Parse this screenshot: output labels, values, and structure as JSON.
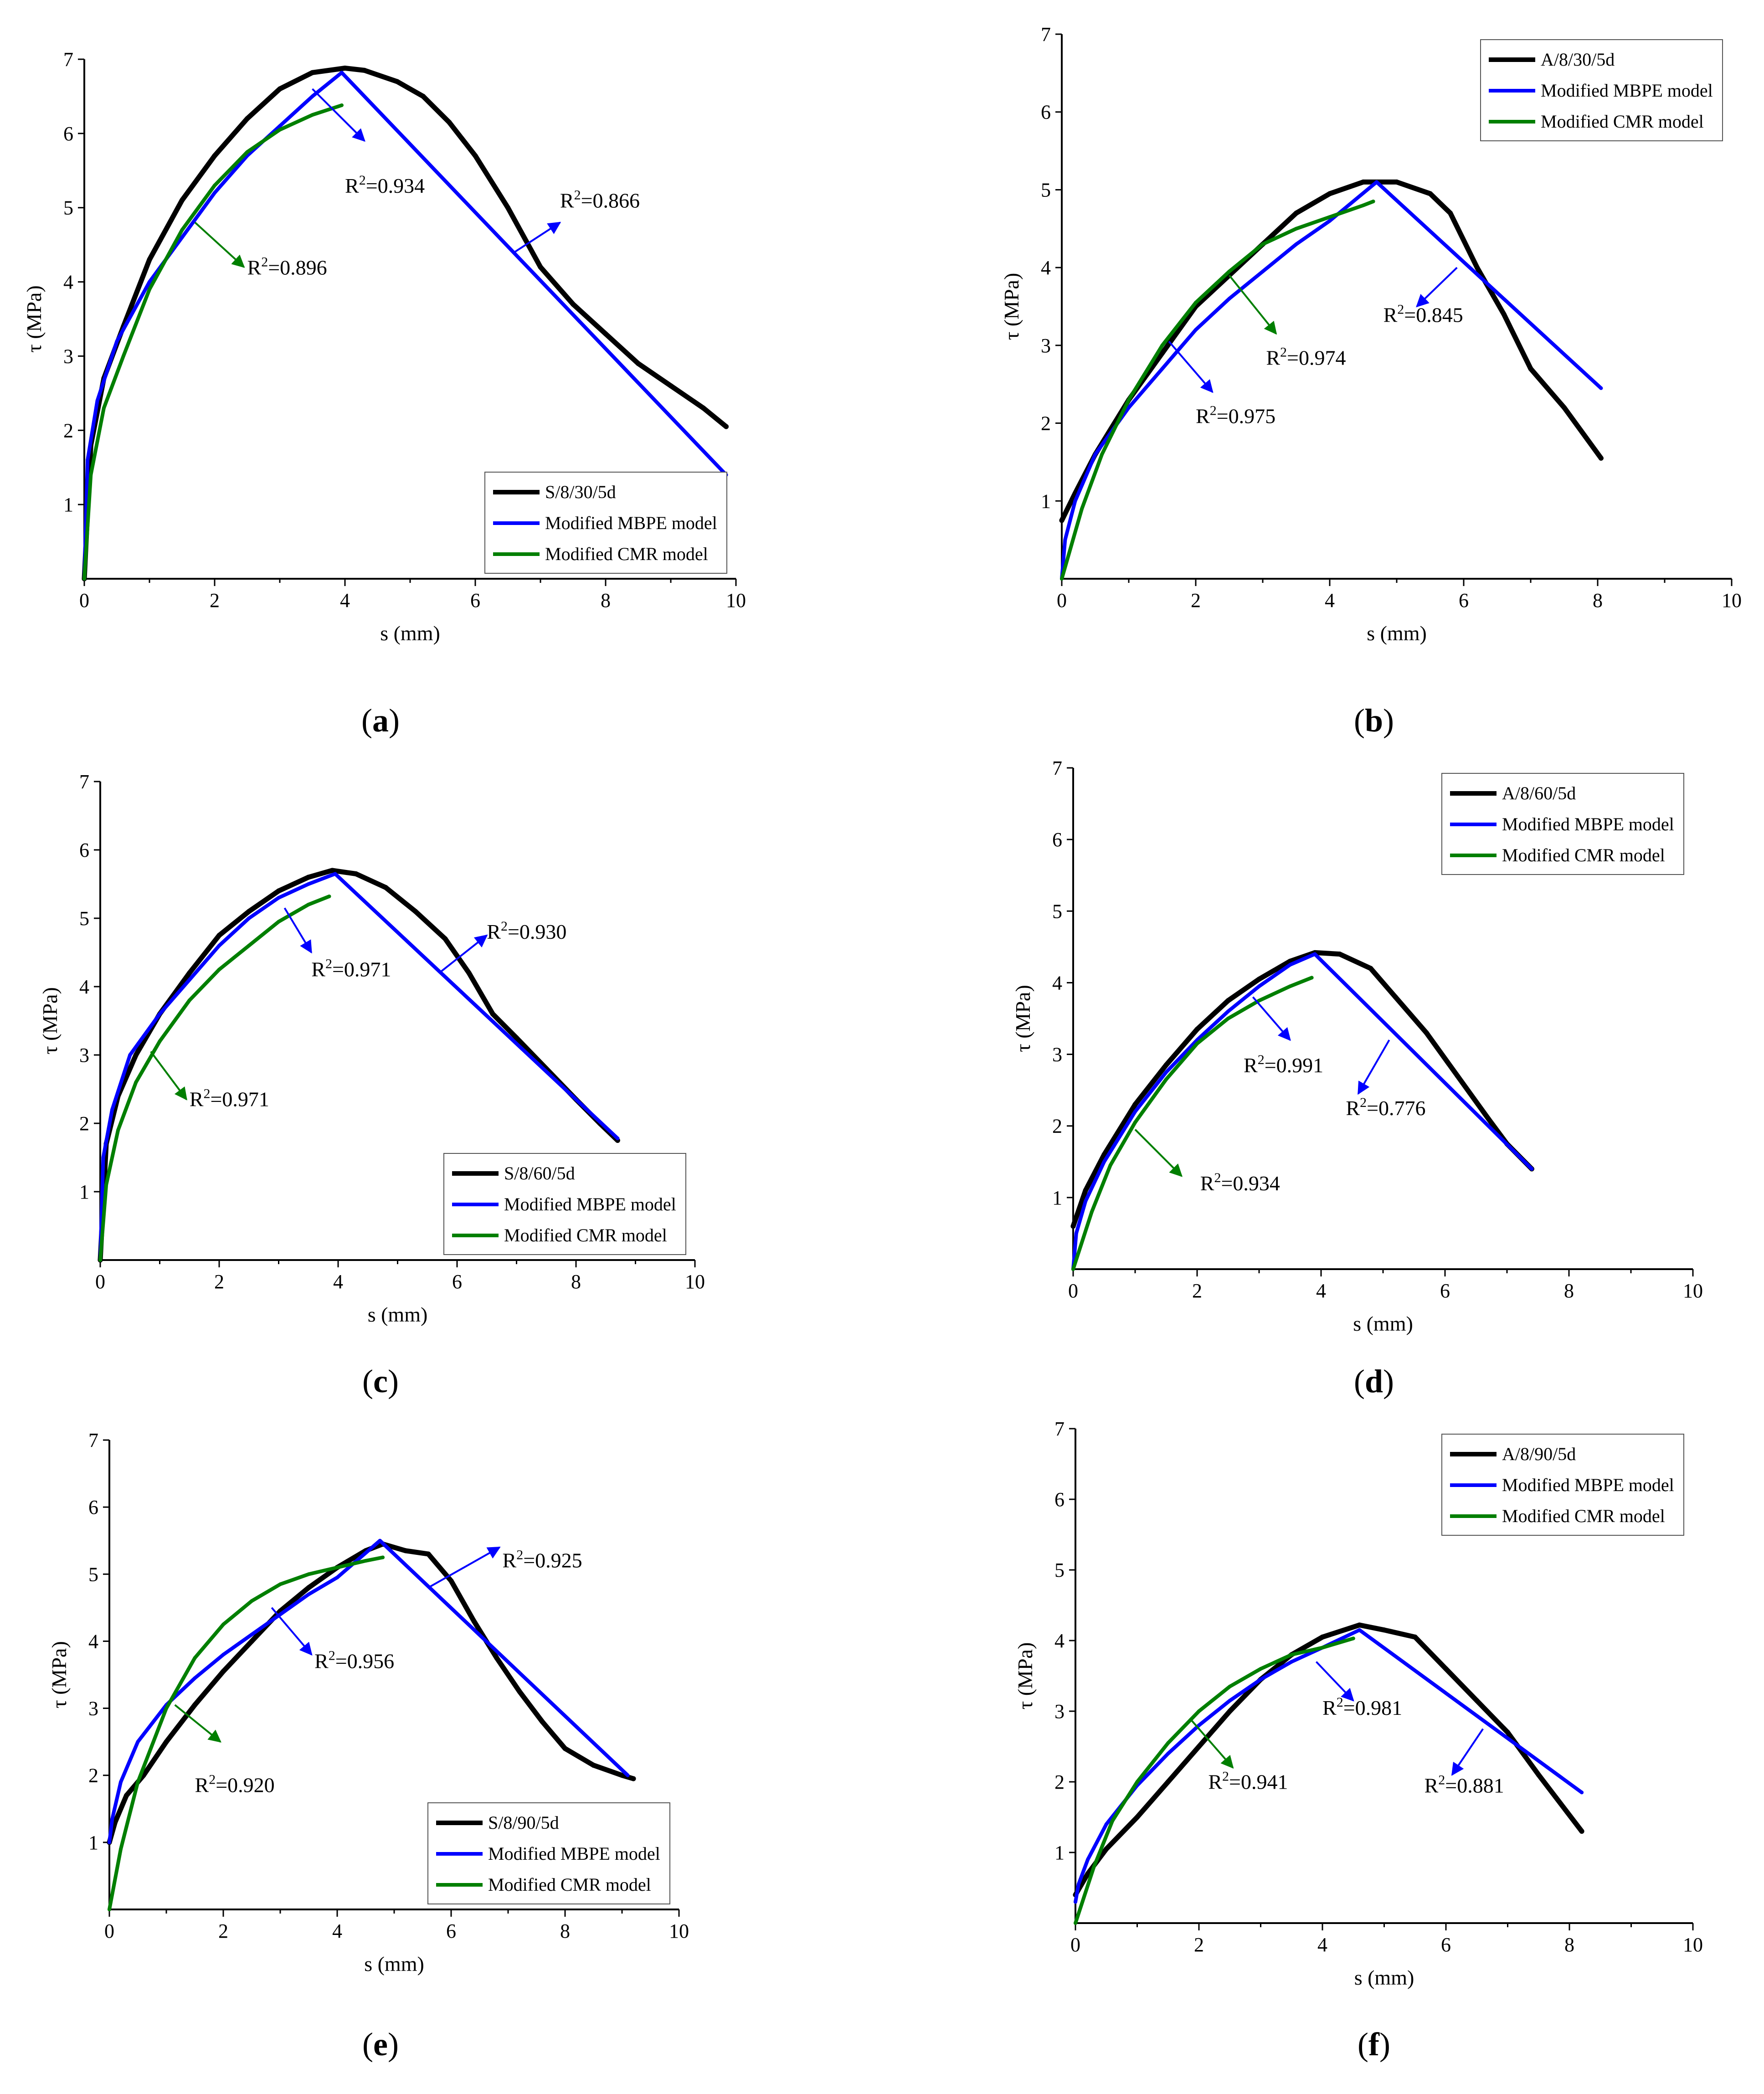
{
  "colors": {
    "experimental": "#000000",
    "mbpe": "#0000ff",
    "cmr": "#007f00"
  },
  "chart_data": [
    {
      "type": "line",
      "caption": "a",
      "xlabel": "s (mm)",
      "ylabel": "τ (MPa)",
      "xlim": [
        0,
        10
      ],
      "ylim": [
        0,
        7
      ],
      "xticks": [
        0,
        2,
        4,
        6,
        8,
        10
      ],
      "yticks": [
        1,
        2,
        3,
        4,
        5,
        6,
        7
      ],
      "legend_position": "bottom-right",
      "series": [
        {
          "name": "S/8/30/5d",
          "role": "experimental",
          "x": [
            0,
            0.1,
            0.3,
            0.6,
            1.0,
            1.5,
            2.0,
            2.5,
            3.0,
            3.5,
            4.0,
            4.3,
            4.8,
            5.2,
            5.6,
            6.0,
            6.5,
            7.0,
            7.5,
            8.0,
            8.5,
            9.0,
            9.5,
            9.85
          ],
          "y": [
            0,
            1.8,
            2.7,
            3.4,
            4.3,
            5.1,
            5.7,
            6.2,
            6.6,
            6.82,
            6.88,
            6.85,
            6.7,
            6.5,
            6.15,
            5.7,
            5.0,
            4.2,
            3.7,
            3.3,
            2.9,
            2.6,
            2.3,
            2.05
          ]
        },
        {
          "name": "Modified MBPE model",
          "role": "mbpe",
          "x": [
            0,
            0.05,
            0.2,
            0.5,
            1.0,
            1.5,
            2.0,
            2.5,
            3.0,
            3.5,
            3.95,
            9.85
          ],
          "y": [
            0,
            1.6,
            2.4,
            3.2,
            4.0,
            4.6,
            5.2,
            5.7,
            6.1,
            6.5,
            6.82,
            1.4
          ]
        },
        {
          "name": "Modified CMR model",
          "role": "cmr",
          "x": [
            0,
            0.1,
            0.3,
            0.6,
            1.0,
            1.5,
            2.0,
            2.5,
            3.0,
            3.5,
            3.95
          ],
          "y": [
            0,
            1.4,
            2.3,
            3.0,
            3.9,
            4.7,
            5.3,
            5.75,
            6.05,
            6.25,
            6.38
          ]
        }
      ],
      "annotations": [
        {
          "text": "R2=0.934",
          "value": "0.934",
          "tx": 4.0,
          "ty": 5.2,
          "ax1": 3.5,
          "ay1": 6.6,
          "ax2": 4.3,
          "ay2": 5.9,
          "color": "mbpe"
        },
        {
          "text": "R2=0.866",
          "value": "0.866",
          "tx": 7.3,
          "ty": 5.0,
          "ax1": 6.6,
          "ay1": 4.4,
          "ax2": 7.3,
          "ay2": 4.8,
          "color": "mbpe"
        },
        {
          "text": "R2=0.896",
          "value": "0.896",
          "tx": 2.5,
          "ty": 4.1,
          "ax1": 1.7,
          "ay1": 4.8,
          "ax2": 2.45,
          "ay2": 4.2,
          "color": "cmr"
        }
      ]
    },
    {
      "type": "line",
      "caption": "b",
      "xlabel": "s (mm)",
      "ylabel": "τ (MPa)",
      "xlim": [
        0,
        10
      ],
      "ylim": [
        0,
        7
      ],
      "xticks": [
        0,
        2,
        4,
        6,
        8,
        10
      ],
      "yticks": [
        1,
        2,
        3,
        4,
        5,
        6,
        7
      ],
      "legend_position": "top-right",
      "series": [
        {
          "name": "A/8/30/5d",
          "role": "experimental",
          "x": [
            0,
            0.2,
            0.5,
            1.0,
            1.5,
            2.0,
            2.5,
            3.0,
            3.5,
            4.0,
            4.5,
            5.0,
            5.5,
            5.8,
            6.2,
            6.6,
            7.0,
            7.5,
            8.05
          ],
          "y": [
            0.75,
            1.1,
            1.6,
            2.3,
            2.9,
            3.5,
            3.9,
            4.3,
            4.7,
            4.95,
            5.1,
            5.1,
            4.95,
            4.7,
            4.0,
            3.4,
            2.7,
            2.2,
            1.55
          ]
        },
        {
          "name": "Modified MBPE model",
          "role": "mbpe",
          "x": [
            0,
            0.05,
            0.2,
            0.5,
            1.0,
            1.5,
            2.0,
            2.5,
            3.0,
            3.5,
            4.0,
            4.7,
            8.05
          ],
          "y": [
            0,
            0.5,
            1.0,
            1.6,
            2.2,
            2.7,
            3.2,
            3.6,
            3.95,
            4.3,
            4.6,
            5.1,
            2.45
          ]
        },
        {
          "name": "Modified CMR model",
          "role": "cmr",
          "x": [
            0,
            0.3,
            0.6,
            1.0,
            1.5,
            2.0,
            2.5,
            3.0,
            3.5,
            4.0,
            4.5,
            4.65
          ],
          "y": [
            0,
            0.9,
            1.6,
            2.3,
            3.0,
            3.55,
            3.95,
            4.3,
            4.5,
            4.65,
            4.8,
            4.85
          ]
        }
      ],
      "annotations": [
        {
          "text": "R2=0.845",
          "value": "0.845",
          "tx": 4.8,
          "ty": 3.3,
          "ax1": 5.9,
          "ay1": 4.0,
          "ax2": 5.3,
          "ay2": 3.5,
          "color": "mbpe"
        },
        {
          "text": "R2=0.974",
          "value": "0.974",
          "tx": 3.05,
          "ty": 2.75,
          "ax1": 2.5,
          "ay1": 3.9,
          "ax2": 3.2,
          "ay2": 3.15,
          "color": "cmr"
        },
        {
          "text": "R2=0.975",
          "value": "0.975",
          "tx": 2.0,
          "ty": 2.0,
          "ax1": 1.6,
          "ay1": 3.05,
          "ax2": 2.25,
          "ay2": 2.4,
          "color": "mbpe"
        }
      ]
    },
    {
      "type": "line",
      "caption": "c",
      "xlabel": "s (mm)",
      "ylabel": "τ (MPa)",
      "xlim": [
        0,
        10
      ],
      "ylim": [
        0,
        7
      ],
      "xticks": [
        0,
        2,
        4,
        6,
        8,
        10
      ],
      "yticks": [
        1,
        2,
        3,
        4,
        5,
        6,
        7
      ],
      "legend_position": "bottom-right",
      "series": [
        {
          "name": "S/8/60/5d",
          "role": "experimental",
          "x": [
            0,
            0.1,
            0.3,
            0.6,
            1.0,
            1.5,
            2.0,
            2.5,
            3.0,
            3.5,
            3.9,
            4.3,
            4.8,
            5.3,
            5.8,
            6.2,
            6.6,
            7.0,
            7.5,
            8.0,
            8.4,
            8.7
          ],
          "y": [
            0,
            1.7,
            2.4,
            3.0,
            3.6,
            4.2,
            4.75,
            5.1,
            5.4,
            5.6,
            5.7,
            5.65,
            5.45,
            5.1,
            4.7,
            4.2,
            3.6,
            3.25,
            2.8,
            2.35,
            2.0,
            1.75
          ]
        },
        {
          "name": "Modified MBPE model",
          "role": "mbpe",
          "x": [
            0,
            0.05,
            0.2,
            0.5,
            1.0,
            1.5,
            2.0,
            2.5,
            3.0,
            3.5,
            3.95,
            8.7
          ],
          "y": [
            0,
            1.5,
            2.2,
            3.0,
            3.6,
            4.1,
            4.6,
            5.0,
            5.3,
            5.5,
            5.65,
            1.78
          ]
        },
        {
          "name": "Modified CMR model",
          "role": "cmr",
          "x": [
            0,
            0.1,
            0.3,
            0.6,
            1.0,
            1.5,
            2.0,
            2.5,
            3.0,
            3.5,
            3.85
          ],
          "y": [
            0,
            1.1,
            1.9,
            2.6,
            3.2,
            3.8,
            4.25,
            4.6,
            4.95,
            5.2,
            5.32
          ]
        }
      ],
      "annotations": [
        {
          "text": "R2=0.971",
          "value": "0.971",
          "tx": 3.55,
          "ty": 4.15,
          "ax1": 3.1,
          "ay1": 5.15,
          "ax2": 3.55,
          "ay2": 4.5,
          "color": "mbpe"
        },
        {
          "text": "R2=0.930",
          "value": "0.930",
          "tx": 6.5,
          "ty": 4.7,
          "ax1": 5.7,
          "ay1": 4.2,
          "ax2": 6.5,
          "ay2": 4.75,
          "color": "mbpe"
        },
        {
          "text": "R2=0.971",
          "value": "0.971",
          "tx": 1.5,
          "ty": 2.25,
          "ax1": 0.85,
          "ay1": 3.05,
          "ax2": 1.45,
          "ay2": 2.35,
          "color": "cmr"
        }
      ]
    },
    {
      "type": "line",
      "caption": "d",
      "xlabel": "s (mm)",
      "ylabel": "τ (MPa)",
      "xlim": [
        0,
        10
      ],
      "ylim": [
        0,
        7
      ],
      "xticks": [
        0,
        2,
        4,
        6,
        8,
        10
      ],
      "yticks": [
        1,
        2,
        3,
        4,
        5,
        6,
        7
      ],
      "legend_position": "top-right",
      "series": [
        {
          "name": "A/8/60/5d",
          "role": "experimental",
          "x": [
            0,
            0.2,
            0.5,
            1.0,
            1.5,
            2.0,
            2.5,
            3.0,
            3.5,
            3.9,
            4.3,
            4.8,
            5.2,
            5.7,
            6.2,
            6.7,
            7.0,
            7.4
          ],
          "y": [
            0.6,
            1.1,
            1.6,
            2.3,
            2.85,
            3.35,
            3.75,
            4.05,
            4.3,
            4.42,
            4.4,
            4.2,
            3.8,
            3.3,
            2.7,
            2.1,
            1.75,
            1.4
          ]
        },
        {
          "name": "Modified MBPE model",
          "role": "mbpe",
          "x": [
            0,
            0.05,
            0.2,
            0.5,
            1.0,
            1.5,
            2.0,
            2.5,
            3.0,
            3.5,
            3.9,
            7.4
          ],
          "y": [
            0,
            0.5,
            0.95,
            1.5,
            2.2,
            2.75,
            3.2,
            3.6,
            3.95,
            4.25,
            4.4,
            1.4
          ]
        },
        {
          "name": "Modified CMR model",
          "role": "cmr",
          "x": [
            0,
            0.3,
            0.6,
            1.0,
            1.5,
            2.0,
            2.5,
            3.0,
            3.5,
            3.85
          ],
          "y": [
            0,
            0.8,
            1.45,
            2.05,
            2.65,
            3.15,
            3.5,
            3.75,
            3.95,
            4.07
          ]
        }
      ],
      "annotations": [
        {
          "text": "R2=0.991",
          "value": "0.991",
          "tx": 2.75,
          "ty": 2.75,
          "ax1": 2.9,
          "ay1": 3.8,
          "ax2": 3.5,
          "ay2": 3.2,
          "color": "mbpe"
        },
        {
          "text": "R2=0.776",
          "value": "0.776",
          "tx": 4.4,
          "ty": 2.15,
          "ax1": 5.1,
          "ay1": 3.2,
          "ax2": 4.6,
          "ay2": 2.45,
          "color": "mbpe"
        },
        {
          "text": "R2=0.934",
          "value": "0.934",
          "tx": 2.05,
          "ty": 1.1,
          "ax1": 1.0,
          "ay1": 1.95,
          "ax2": 1.75,
          "ay2": 1.3,
          "color": "cmr"
        }
      ]
    },
    {
      "type": "line",
      "caption": "e",
      "xlabel": "s (mm)",
      "ylabel": "τ (MPa)",
      "xlim": [
        0,
        10
      ],
      "ylim": [
        0,
        7
      ],
      "xticks": [
        0,
        2,
        4,
        6,
        8,
        10
      ],
      "yticks": [
        1,
        2,
        3,
        4,
        5,
        6,
        7
      ],
      "legend_position": "bottom-right",
      "series": [
        {
          "name": "S/8/90/5d",
          "role": "experimental",
          "x": [
            0,
            0.1,
            0.3,
            0.6,
            1.0,
            1.5,
            2.0,
            2.5,
            3.0,
            3.5,
            4.0,
            4.5,
            4.8,
            5.2,
            5.6,
            6.0,
            6.4,
            6.8,
            7.2,
            7.6,
            8.0,
            8.5,
            9.0,
            9.2
          ],
          "y": [
            1.0,
            1.3,
            1.7,
            2.0,
            2.5,
            3.05,
            3.55,
            4.0,
            4.45,
            4.8,
            5.1,
            5.35,
            5.45,
            5.35,
            5.3,
            4.9,
            4.3,
            3.75,
            3.25,
            2.8,
            2.4,
            2.15,
            2.0,
            1.95
          ]
        },
        {
          "name": "Modified MBPE model",
          "role": "mbpe",
          "x": [
            0,
            0.05,
            0.2,
            0.5,
            1.0,
            1.5,
            2.0,
            2.5,
            3.0,
            3.5,
            4.0,
            4.75,
            9.1
          ],
          "y": [
            1.0,
            1.35,
            1.9,
            2.5,
            3.05,
            3.45,
            3.8,
            4.1,
            4.4,
            4.7,
            4.95,
            5.5,
            2.0
          ]
        },
        {
          "name": "Modified CMR model",
          "role": "cmr",
          "x": [
            0,
            0.2,
            0.5,
            1.0,
            1.5,
            2.0,
            2.5,
            3.0,
            3.5,
            4.0,
            4.5,
            4.8
          ],
          "y": [
            0,
            0.9,
            1.9,
            3.0,
            3.75,
            4.25,
            4.6,
            4.85,
            5.0,
            5.1,
            5.2,
            5.25
          ]
        }
      ],
      "annotations": [
        {
          "text": "R2=0.956",
          "value": "0.956",
          "tx": 3.6,
          "ty": 3.6,
          "ax1": 2.85,
          "ay1": 4.5,
          "ax2": 3.55,
          "ay2": 3.8,
          "color": "mbpe"
        },
        {
          "text": "R2=0.925",
          "value": "0.925",
          "tx": 6.9,
          "ty": 5.1,
          "ax1": 5.6,
          "ay1": 4.8,
          "ax2": 6.85,
          "ay2": 5.4,
          "color": "mbpe"
        },
        {
          "text": "R2=0.920",
          "value": "0.920",
          "tx": 1.5,
          "ty": 1.75,
          "ax1": 1.15,
          "ay1": 3.05,
          "ax2": 1.95,
          "ay2": 2.5,
          "color": "cmr"
        }
      ]
    },
    {
      "type": "line",
      "caption": "f",
      "xlabel": "s (mm)",
      "ylabel": "τ (MPa)",
      "xlim": [
        0,
        10
      ],
      "ylim": [
        0,
        7
      ],
      "xticks": [
        0,
        2,
        4,
        6,
        8,
        10
      ],
      "yticks": [
        1,
        2,
        3,
        4,
        5,
        6,
        7
      ],
      "legend_position": "top-right",
      "series": [
        {
          "name": "A/8/90/5d",
          "role": "experimental",
          "x": [
            0,
            0.2,
            0.5,
            1.0,
            1.5,
            2.0,
            2.5,
            3.0,
            3.5,
            4.0,
            4.6,
            5.0,
            5.5,
            6.0,
            6.5,
            7.0,
            7.5,
            8.2
          ],
          "y": [
            0.4,
            0.7,
            1.05,
            1.5,
            2.0,
            2.5,
            3.0,
            3.45,
            3.8,
            4.05,
            4.22,
            4.15,
            4.05,
            3.6,
            3.15,
            2.7,
            2.1,
            1.3
          ]
        },
        {
          "name": "Modified MBPE model",
          "role": "mbpe",
          "x": [
            0,
            0.05,
            0.2,
            0.5,
            1.0,
            1.5,
            2.0,
            2.5,
            3.0,
            3.5,
            4.0,
            4.6,
            8.2
          ],
          "y": [
            0.3,
            0.55,
            0.9,
            1.4,
            1.95,
            2.4,
            2.8,
            3.15,
            3.45,
            3.7,
            3.9,
            4.15,
            1.85
          ]
        },
        {
          "name": "Modified CMR model",
          "role": "cmr",
          "x": [
            0,
            0.3,
            0.6,
            1.0,
            1.5,
            2.0,
            2.5,
            3.0,
            3.5,
            4.0,
            4.5
          ],
          "y": [
            0,
            0.8,
            1.45,
            2.0,
            2.55,
            3.0,
            3.35,
            3.6,
            3.8,
            3.9,
            4.03
          ]
        }
      ],
      "annotations": [
        {
          "text": "R2=0.941",
          "value": "0.941",
          "tx": 2.15,
          "ty": 1.9,
          "ax1": 1.85,
          "ay1": 2.9,
          "ax2": 2.55,
          "ay2": 2.2,
          "color": "cmr"
        },
        {
          "text": "R2=0.981",
          "value": "0.981",
          "tx": 4.0,
          "ty": 2.95,
          "ax1": 3.9,
          "ay1": 3.7,
          "ax2": 4.5,
          "ay2": 3.15,
          "color": "mbpe"
        },
        {
          "text": "R2=0.881",
          "value": "0.881",
          "tx": 5.65,
          "ty": 1.85,
          "ax1": 6.6,
          "ay1": 2.75,
          "ax2": 6.1,
          "ay2": 2.1,
          "color": "mbpe"
        }
      ]
    }
  ]
}
